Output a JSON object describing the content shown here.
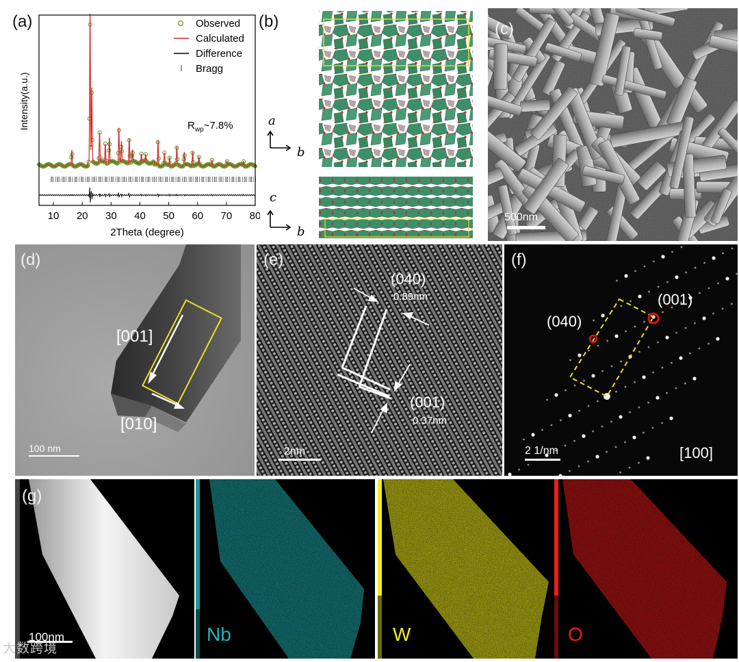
{
  "panels": {
    "a": {
      "label": "(a)"
    },
    "b": {
      "label": "(b)"
    },
    "c": {
      "label": "(c)"
    },
    "d": {
      "label": "(d)"
    },
    "e": {
      "label": "(e)"
    },
    "f": {
      "label": "(f)"
    },
    "g": {
      "label": "(g)"
    }
  },
  "chart_data": {
    "type": "scatter",
    "xlabel": "2Theta (degree)",
    "ylabel": "Intensity(a.u.)",
    "xlim": [
      5,
      80
    ],
    "xticks": [
      "10",
      "20",
      "30",
      "40",
      "50",
      "60",
      "70",
      "80"
    ],
    "legend_position": "top-right",
    "legend": [
      {
        "name": "Observed",
        "style": "open-circle",
        "color": "#5aa02c"
      },
      {
        "name": "Calculated",
        "style": "line",
        "color": "#d62728"
      },
      {
        "name": "Difference",
        "style": "line",
        "color": "#000000"
      },
      {
        "name": "Bragg",
        "style": "tick",
        "color": "#555555"
      }
    ],
    "annotation_main": "R",
    "annotation_sub": "wp",
    "annotation_value": "~7.8%",
    "peaks": [
      {
        "x": 16.4,
        "h": 0.1
      },
      {
        "x": 22.7,
        "h": 1.0
      },
      {
        "x": 23.3,
        "h": 0.5
      },
      {
        "x": 26.0,
        "h": 0.2
      },
      {
        "x": 28.0,
        "h": 0.13
      },
      {
        "x": 29.4,
        "h": 0.17
      },
      {
        "x": 32.7,
        "h": 0.24
      },
      {
        "x": 33.6,
        "h": 0.14
      },
      {
        "x": 36.3,
        "h": 0.17
      },
      {
        "x": 37.4,
        "h": 0.08
      },
      {
        "x": 40.5,
        "h": 0.06
      },
      {
        "x": 42.0,
        "h": 0.05
      },
      {
        "x": 46.3,
        "h": 0.17
      },
      {
        "x": 48.5,
        "h": 0.08
      },
      {
        "x": 50.3,
        "h": 0.06
      },
      {
        "x": 52.8,
        "h": 0.12
      },
      {
        "x": 55.4,
        "h": 0.09
      },
      {
        "x": 58.3,
        "h": 0.1
      },
      {
        "x": 60.5,
        "h": 0.05
      },
      {
        "x": 65.0,
        "h": 0.04
      },
      {
        "x": 70.2,
        "h": 0.03
      },
      {
        "x": 76.0,
        "h": 0.03
      }
    ]
  },
  "crystal": {
    "axes1_top": "a",
    "axes1_right": "b",
    "axes2_top": "c",
    "axes2_right": "b"
  },
  "sem": {
    "scale_text": "500nm"
  },
  "tem_d": {
    "dir1": "[001]",
    "dir2": "[010]",
    "scale_text": "100 nm"
  },
  "hrtem_e": {
    "plane1": "(040)",
    "spacing1": "0.89nm",
    "plane2": "(001)",
    "spacing2": "0.37nm",
    "scale_text": "2nm"
  },
  "saed_f": {
    "spot1": "(040)",
    "spot2": "(001)",
    "zone_axis": "[100]",
    "scale_text": "2 1/nm"
  },
  "eds_g": {
    "scale_text": "100nm",
    "maps": [
      {
        "element": "Nb",
        "color": "#20b6b8"
      },
      {
        "element": "W",
        "color": "#f2ee1c"
      },
      {
        "element": "O",
        "color": "#ee1c1c"
      }
    ]
  },
  "watermark": "大数跨境"
}
